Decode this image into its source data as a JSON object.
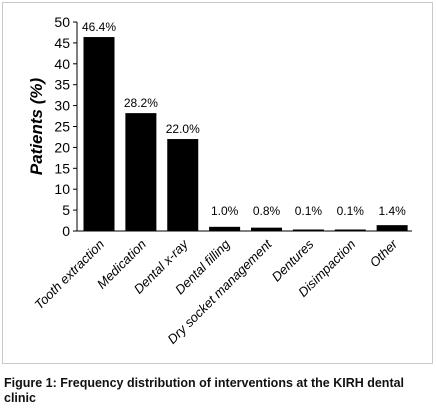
{
  "caption": "Figure 1: Frequency distribution of interventions at the KIRH dental clinic",
  "chart_data": {
    "type": "bar",
    "categories": [
      "Tooth extraction",
      "Medication",
      "Dental x-ray",
      "Dental filling",
      "Dry socket management",
      "Dentures",
      "Disimpaction",
      "Other"
    ],
    "values": [
      46.4,
      28.2,
      22.0,
      1.0,
      0.8,
      0.1,
      0.1,
      1.4
    ],
    "data_labels": [
      "46.4%",
      "28.2%",
      "22.0%",
      "1.0%",
      "0.8%",
      "0.1%",
      "0.1%",
      "1.4%"
    ],
    "title": "",
    "xlabel": "",
    "ylabel": "Patients (%)",
    "ylim": [
      0,
      50
    ],
    "yticks": [
      0,
      5,
      10,
      15,
      20,
      25,
      30,
      35,
      40,
      45,
      50
    ],
    "grid": false,
    "legend": "none",
    "bar_color": "#000000"
  }
}
